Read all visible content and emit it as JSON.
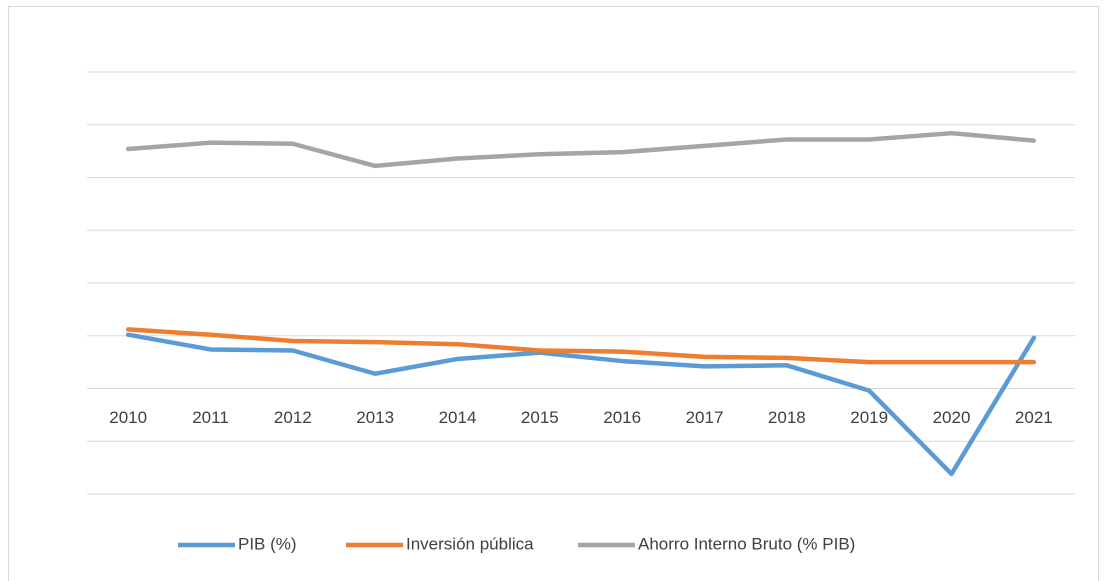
{
  "chart_data": {
    "type": "line",
    "categories": [
      "2010",
      "2011",
      "2012",
      "2013",
      "2014",
      "2015",
      "2016",
      "2017",
      "2018",
      "2019",
      "2020",
      "2021"
    ],
    "series": [
      {
        "name": "PIB (%)",
        "color": "#5b9bd5",
        "values": [
          5.1,
          3.7,
          3.6,
          1.4,
          2.8,
          3.4,
          2.6,
          2.1,
          2.2,
          -0.2,
          -8.1,
          4.8
        ]
      },
      {
        "name": "Inversión pública",
        "color": "#ed7d31",
        "values": [
          5.6,
          5.1,
          4.5,
          4.4,
          4.2,
          3.6,
          3.5,
          3.0,
          2.9,
          2.5,
          2.5,
          2.5
        ]
      },
      {
        "name": "Ahorro Interno Bruto (% PIB)",
        "color": "#a5a5a5",
        "values": [
          22.7,
          23.3,
          23.2,
          21.1,
          21.8,
          22.2,
          22.4,
          23.0,
          23.6,
          23.6,
          24.2,
          23.5
        ]
      }
    ],
    "ylim": [
      -10,
      30
    ],
    "yticks": [
      -10,
      -5,
      0,
      5,
      10,
      15,
      20,
      25,
      30
    ],
    "grid": true,
    "legend": "bottom"
  }
}
